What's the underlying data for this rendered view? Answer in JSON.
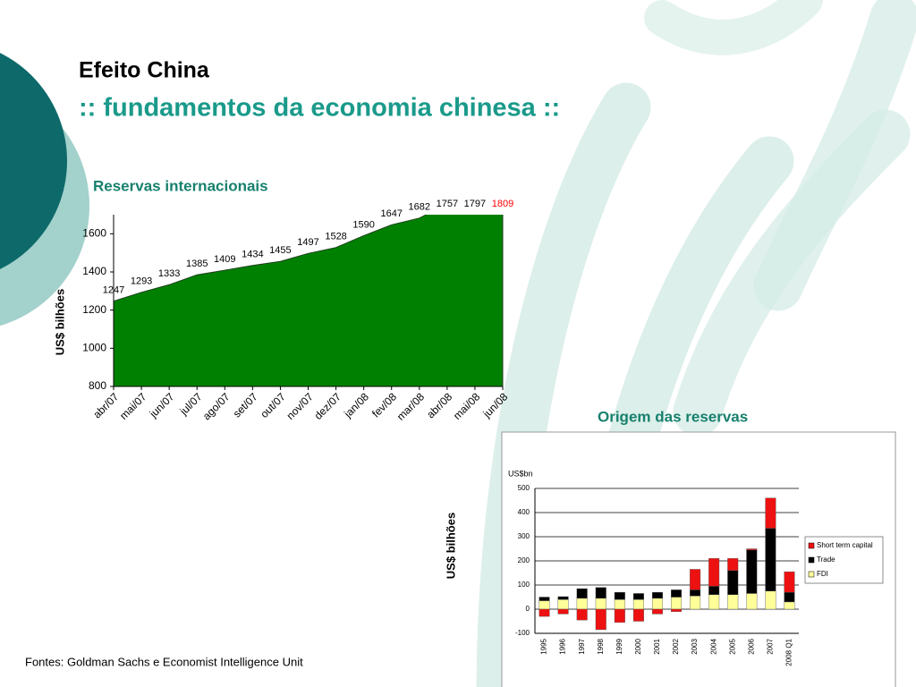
{
  "slide": {
    "title": "Efeito China",
    "subtitle": ":: fundamentos da economia chinesa ::",
    "source": "Fontes: Goldman Sachs e Economist Intelligence Unit"
  },
  "chart_data": [
    {
      "type": "area",
      "title": "Reservas internacionais",
      "y_label": "US$ bilhões",
      "categories": [
        "abr/07",
        "mai/07",
        "jun/07",
        "jul/07",
        "ago/07",
        "set/07",
        "out/07",
        "nov/07",
        "dez/07",
        "jan/08",
        "fev/08",
        "mar/08",
        "abr/08",
        "mai/08",
        "jun/08"
      ],
      "values": [
        1247,
        1293,
        1333,
        1385,
        1409,
        1434,
        1455,
        1497,
        1528,
        1590,
        1647,
        1682,
        1757,
        1797,
        1809
      ],
      "value_label_colors": [
        "#000000",
        "#000000",
        "#000000",
        "#000000",
        "#000000",
        "#000000",
        "#000000",
        "#000000",
        "#000000",
        "#000000",
        "#000000",
        "#000000",
        "#000000",
        "#000000",
        "#ff0000"
      ],
      "color": "#008000",
      "ylim": [
        800,
        1700
      ],
      "yticks": [
        800,
        1000,
        1200,
        1400,
        1600
      ]
    },
    {
      "type": "stacked_bar",
      "title": "Origem das reservas",
      "y_label": "US$ bilhões",
      "unit_label": "US$bn",
      "categories": [
        "1995",
        "1996",
        "1997",
        "1998",
        "1999",
        "2000",
        "2001",
        "2002",
        "2003",
        "2004",
        "2005",
        "2006",
        "2007",
        "2008 Q1"
      ],
      "series": [
        {
          "name": "FDI",
          "color": "#ffff99",
          "values": [
            35,
            40,
            45,
            45,
            40,
            40,
            45,
            50,
            55,
            60,
            60,
            65,
            75,
            30
          ]
        },
        {
          "name": "Trade",
          "color": "#000000",
          "values": [
            15,
            12,
            40,
            45,
            30,
            25,
            25,
            30,
            25,
            35,
            100,
            180,
            260,
            40
          ]
        },
        {
          "name": "Short term capital",
          "color": "#ee1111",
          "values": [
            -30,
            -20,
            -45,
            -85,
            -55,
            -50,
            -20,
            -10,
            85,
            115,
            50,
            5,
            125,
            85
          ]
        }
      ],
      "ylim": [
        -100,
        500
      ],
      "yticks": [
        -100,
        0,
        100,
        200,
        300,
        400,
        500
      ],
      "grid": true
    }
  ]
}
